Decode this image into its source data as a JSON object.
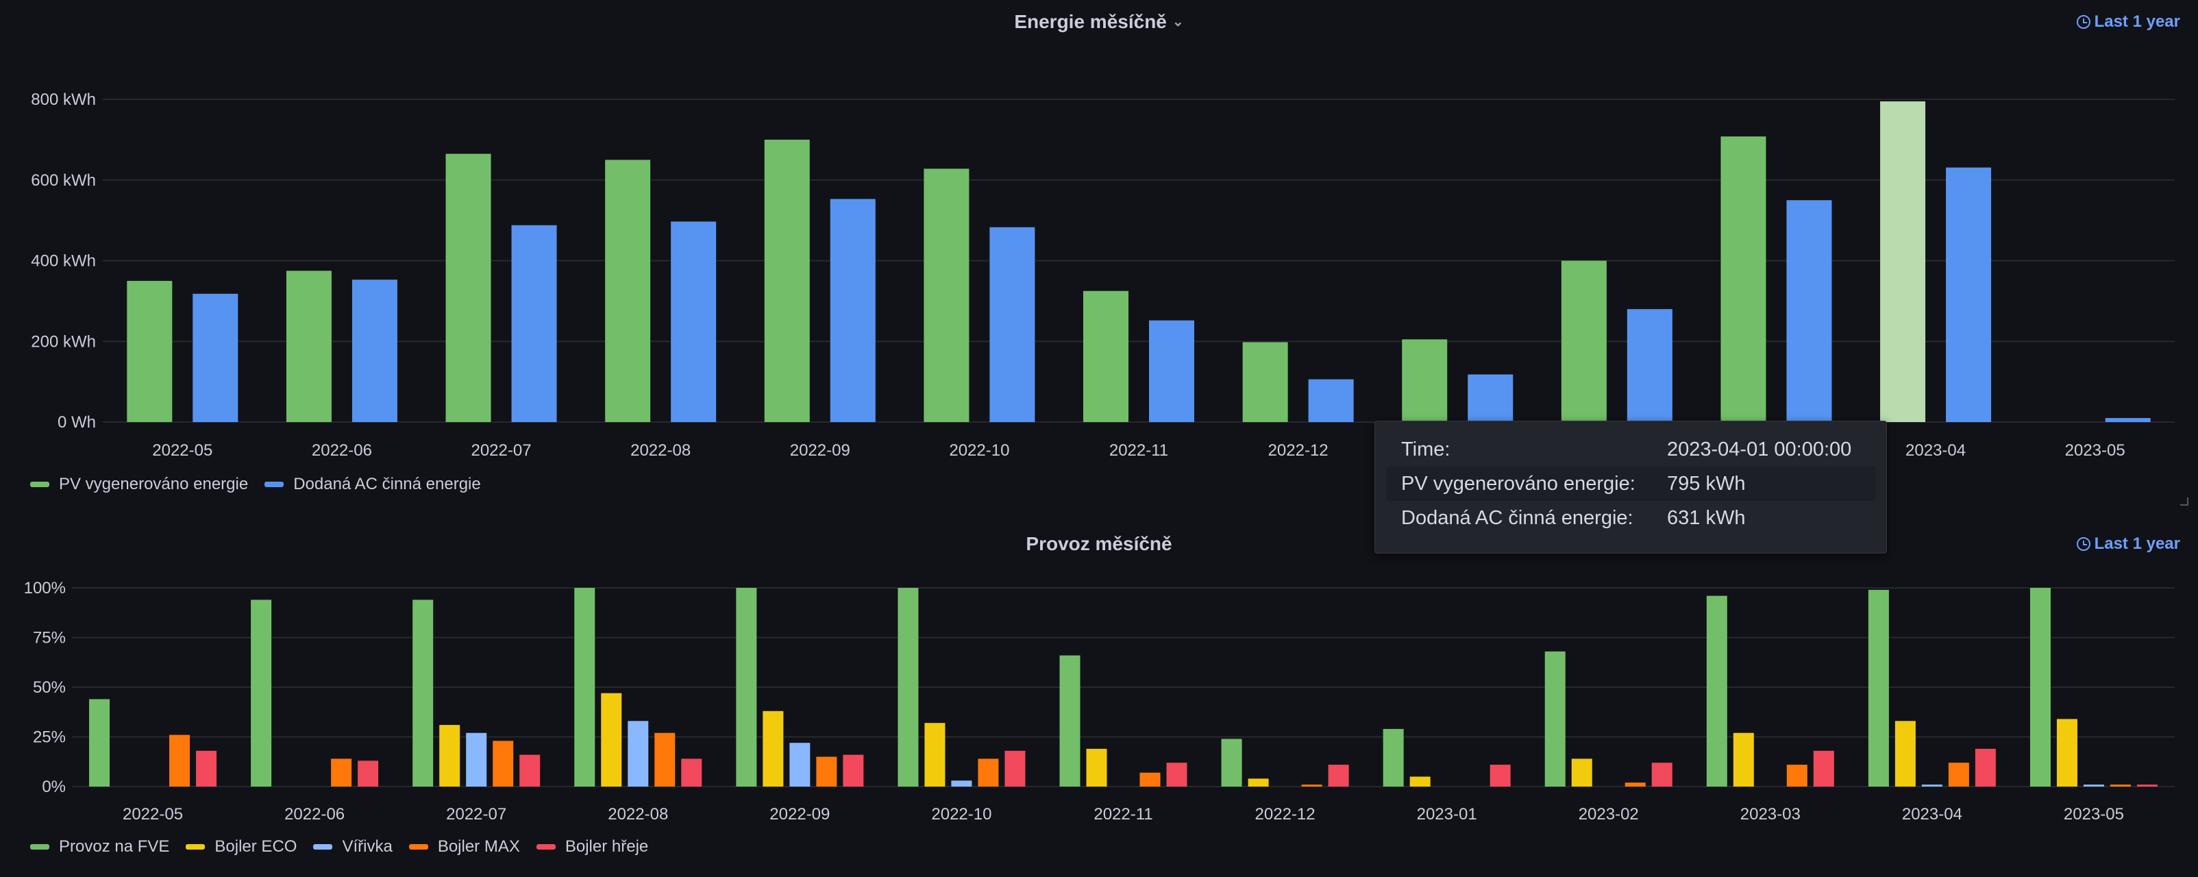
{
  "panels": [
    {
      "title": "Energie měsíčně",
      "time_range": "Last 1 year",
      "tooltip": {
        "time_label": "Time:",
        "time_value": "2023-04-01 00:00:00",
        "rows": [
          {
            "label": "PV vygenerováno energie:",
            "value": "795 kWh"
          },
          {
            "label": "Dodaná AC činná energie:",
            "value": "631 kWh"
          }
        ]
      }
    },
    {
      "title": "Provoz měsíčně",
      "time_range": "Last 1 year"
    }
  ],
  "chart_data": [
    {
      "type": "bar",
      "title": "Energie měsíčně",
      "categories": [
        "2022-05",
        "2022-06",
        "2022-07",
        "2022-08",
        "2022-09",
        "2022-10",
        "2022-11",
        "2022-12",
        "2023-01",
        "2023-02",
        "2023-03",
        "2023-04",
        "2023-05"
      ],
      "x_tick_labels": [
        "2022-05",
        "2022-06",
        "2022-07",
        "2022-08",
        "2022-09",
        "2022-10",
        "2022-11",
        "2022-12",
        "2023-03",
        "2023-04",
        "2023-05"
      ],
      "y_ticks": [
        "0 Wh",
        "200 kWh",
        "400 kWh",
        "600 kWh",
        "800 kWh"
      ],
      "ylim": [
        0,
        800
      ],
      "unit": "kWh",
      "highlighted_category": "2023-04",
      "legend_position": "bottom-left",
      "grid": true,
      "series": [
        {
          "name": "PV vygenerováno energie",
          "color": "#73bf69",
          "highlight_color": "#b9dbae",
          "values": [
            350,
            375,
            665,
            650,
            700,
            628,
            325,
            198,
            205,
            400,
            708,
            795,
            0
          ]
        },
        {
          "name": "Dodaná AC činná energie",
          "color": "#5794f2",
          "values": [
            318,
            353,
            488,
            497,
            553,
            483,
            252,
            106,
            118,
            280,
            550,
            631,
            10
          ]
        }
      ]
    },
    {
      "type": "bar",
      "title": "Provoz měsíčně",
      "categories": [
        "2022-05",
        "2022-06",
        "2022-07",
        "2022-08",
        "2022-09",
        "2022-10",
        "2022-11",
        "2022-12",
        "2023-01",
        "2023-02",
        "2023-03",
        "2023-04",
        "2023-05"
      ],
      "y_ticks": [
        "0%",
        "25%",
        "50%",
        "75%",
        "100%"
      ],
      "ylim": [
        0,
        100
      ],
      "unit": "%",
      "legend_position": "bottom-left",
      "grid": true,
      "series": [
        {
          "name": "Provoz na FVE",
          "color": "#73bf69",
          "values": [
            44,
            94,
            94,
            100,
            100,
            100,
            66,
            24,
            29,
            68,
            96,
            99,
            100
          ]
        },
        {
          "name": "Bojler ECO",
          "color": "#f2cc0c",
          "values": [
            0,
            0,
            31,
            47,
            38,
            32,
            19,
            4,
            5,
            14,
            27,
            33,
            34
          ]
        },
        {
          "name": "Vířivka",
          "color": "#8ab8ff",
          "values": [
            0,
            0,
            27,
            33,
            22,
            3,
            0,
            0,
            0,
            0,
            0,
            1,
            1
          ]
        },
        {
          "name": "Bojler MAX",
          "color": "#ff780a",
          "values": [
            26,
            14,
            23,
            27,
            15,
            14,
            7,
            1,
            0,
            2,
            11,
            12,
            1
          ]
        },
        {
          "name": "Bojler hřeje",
          "color": "#f2495c",
          "values": [
            18,
            13,
            16,
            14,
            16,
            18,
            12,
            11,
            11,
            12,
            18,
            19,
            1
          ]
        }
      ]
    }
  ]
}
